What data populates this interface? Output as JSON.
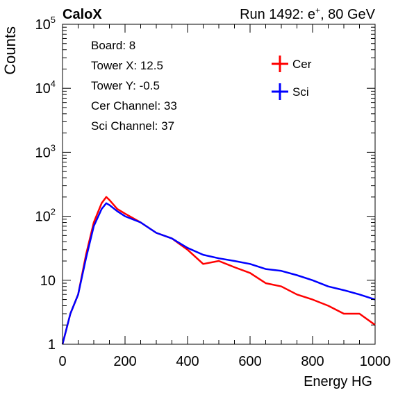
{
  "header": {
    "experiment": "CaloX",
    "run_prefix": "Run 1492: e",
    "run_sup": "+",
    "run_suffix": ", 80 GeV"
  },
  "info": {
    "lines": [
      "Board: 8",
      "Tower X: 12.5",
      "Tower Y: -0.5",
      "Cer Channel: 33",
      "Sci Channel: 37"
    ]
  },
  "chart_data": {
    "type": "line",
    "title": "",
    "xlabel": "Energy HG",
    "ylabel": "Counts",
    "xlim": [
      0,
      1000
    ],
    "ylim": [
      1,
      100000
    ],
    "yscale": "log",
    "x_ticks": [
      0,
      200,
      400,
      600,
      800,
      1000
    ],
    "x_tick_labels": [
      "0",
      "200",
      "400",
      "600",
      "800",
      "1000"
    ],
    "y_tick_labels": [
      {
        "value": 1,
        "base": "1",
        "exp": ""
      },
      {
        "value": 10,
        "base": "10",
        "exp": ""
      },
      {
        "value": 100,
        "base": "10",
        "exp": "2"
      },
      {
        "value": 1000,
        "base": "10",
        "exp": "3"
      },
      {
        "value": 10000,
        "base": "10",
        "exp": "4"
      },
      {
        "value": 100000,
        "base": "10",
        "exp": "5"
      }
    ],
    "legend_position": "top-right",
    "x": [
      0,
      25,
      50,
      75,
      100,
      125,
      140,
      150,
      175,
      200,
      250,
      300,
      350,
      400,
      450,
      500,
      550,
      600,
      650,
      700,
      750,
      800,
      850,
      900,
      950,
      1000
    ],
    "series": [
      {
        "name": "Cer",
        "color": "#ff0000",
        "values": [
          1,
          3,
          6,
          25,
          80,
          160,
          200,
          180,
          130,
          110,
          80,
          55,
          45,
          30,
          18,
          20,
          16,
          13,
          9,
          8,
          6,
          5,
          4,
          3,
          3,
          2
        ]
      },
      {
        "name": "Sci",
        "color": "#0000ff",
        "values": [
          1,
          3,
          6,
          22,
          70,
          130,
          160,
          150,
          120,
          100,
          80,
          55,
          45,
          32,
          25,
          22,
          20,
          18,
          15,
          14,
          12,
          10,
          8,
          7,
          6,
          5
        ]
      }
    ]
  }
}
